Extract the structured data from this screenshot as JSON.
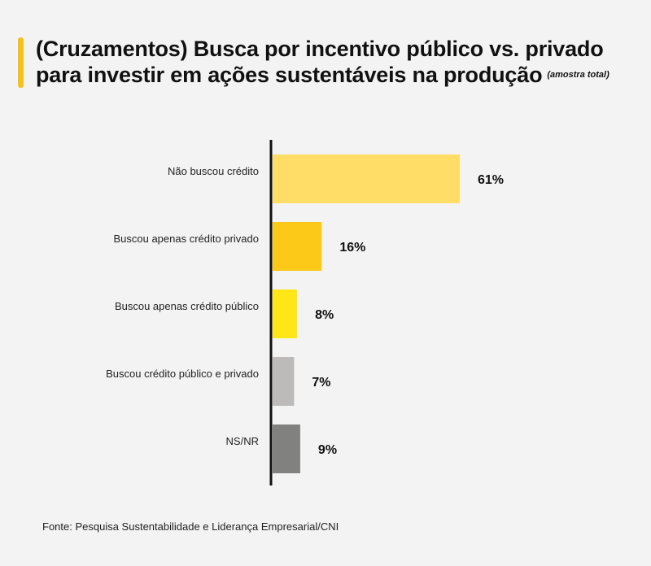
{
  "title": "(Cruzamentos) Busca por incentivo público vs. privado para investir em ações sustentáveis na produção",
  "subtitle": "(amostra total)",
  "source": "Fonte: Pesquisa Sustentabilidade e Liderança Empresarial/CNI",
  "colors": {
    "accent": "#f6c21a",
    "axis": "#111111"
  },
  "chart_data": {
    "type": "bar",
    "orientation": "horizontal",
    "categories": [
      "Não buscou crédito",
      "Buscou apenas crédito privado",
      "Buscou apenas crédito público",
      "Buscou crédito público e privado",
      "NS/NR"
    ],
    "values": [
      61,
      16,
      8,
      7,
      9
    ],
    "value_labels": [
      "61%",
      "16%",
      "8%",
      "7%",
      "9%"
    ],
    "bar_colors": [
      "#ffdd66",
      "#fdc918",
      "#ffe617",
      "#bcbbb9",
      "#818180"
    ],
    "xlim": [
      0,
      100
    ],
    "grid": false,
    "legend": "none"
  }
}
